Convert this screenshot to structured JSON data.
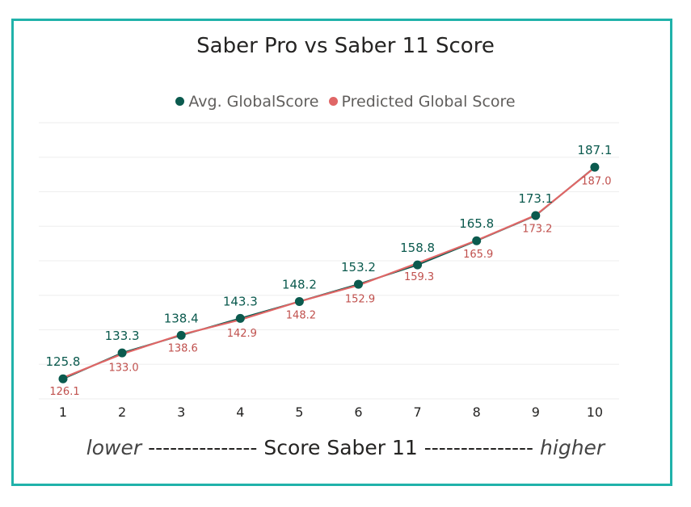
{
  "chart_data": {
    "type": "line",
    "title": "Saber Pro vs Saber 11 Score",
    "x": [
      1,
      2,
      3,
      4,
      5,
      6,
      7,
      8,
      9,
      10
    ],
    "series": [
      {
        "name": "Avg. GlobalScore",
        "color": "#0b5a4e",
        "values": [
          125.8,
          133.3,
          138.4,
          143.3,
          148.2,
          153.2,
          158.8,
          165.8,
          173.1,
          187.1
        ],
        "labels": [
          "125.8",
          "133.3",
          "138.4",
          "143.3",
          "148.2",
          "153.2",
          "158.8",
          "165.8",
          "173.1",
          "187.1"
        ]
      },
      {
        "name": "Predicted Global Score",
        "color": "#e06666",
        "values": [
          126.1,
          133.0,
          138.6,
          142.9,
          148.2,
          152.9,
          159.3,
          165.9,
          173.2,
          187.0
        ],
        "labels": [
          "126.1",
          "133.0",
          "138.6",
          "142.9",
          "148.2",
          "152.9",
          "159.3",
          "165.9",
          "173.2",
          "187.0"
        ]
      }
    ],
    "ylim": [
      120,
      200
    ],
    "grid": true,
    "legend_position": "top-center",
    "xlabel": {
      "left": "lower",
      "left_dashes": "---------------",
      "center": "Score Saber 11",
      "right_dashes": "---------------",
      "right": "higher"
    }
  }
}
